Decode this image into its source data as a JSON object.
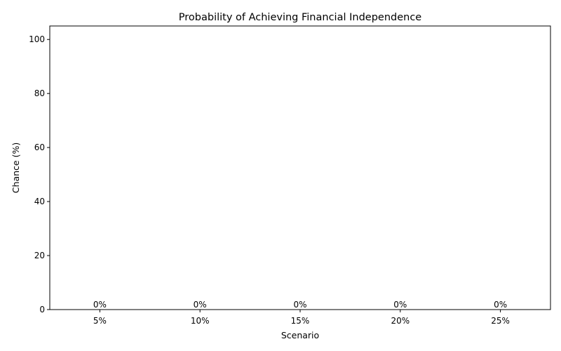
{
  "chart_data": {
    "type": "bar",
    "title": "Probability of Achieving Financial Independence",
    "xlabel": "Scenario",
    "ylabel": "Chance (%)",
    "categories": [
      "5%",
      "10%",
      "15%",
      "20%",
      "25%"
    ],
    "values": [
      0,
      0,
      0,
      0,
      0
    ],
    "data_labels": [
      "0%",
      "0%",
      "0%",
      "0%",
      "0%"
    ],
    "ylim": [
      0,
      105
    ],
    "yticks": [
      0,
      20,
      40,
      60,
      80,
      100
    ],
    "grid": false,
    "bar_color": "#2ca02c"
  }
}
